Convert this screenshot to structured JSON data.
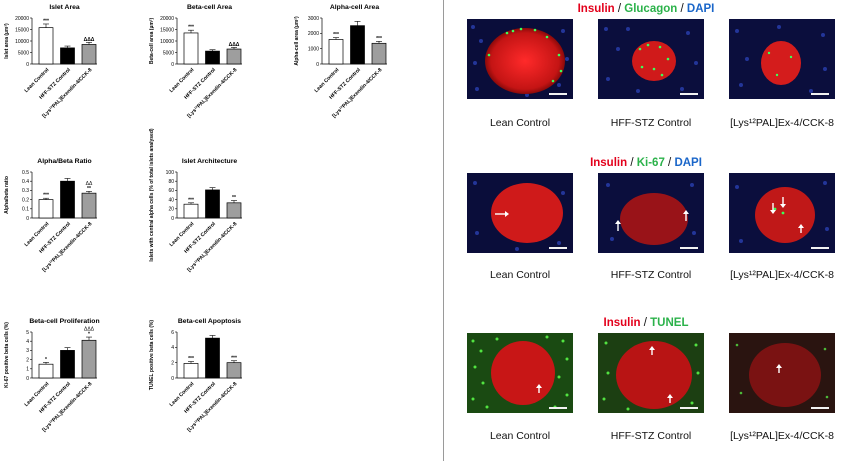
{
  "chart_data": [
    {
      "type": "bar",
      "title": "Islet Area",
      "ylabel": "Islet area (µm²)",
      "ylim": [
        0,
        20000
      ],
      "ticks": [
        0,
        5000,
        10000,
        15000,
        20000
      ],
      "categories": [
        "Lean Control",
        "HFF-STZ Control",
        "[Lys¹²PAL]Exendin-4/CCK-8"
      ],
      "values": [
        15800,
        7000,
        8500
      ],
      "errors": [
        1600,
        800,
        900
      ],
      "annotations": [
        "***",
        "",
        "ΔΔΔ"
      ]
    },
    {
      "type": "bar",
      "title": "Beta-cell Area",
      "ylabel": "Beta-cell area (µm²)",
      "ylim": [
        0,
        20000
      ],
      "ticks": [
        0,
        5000,
        10000,
        15000,
        20000
      ],
      "categories": [
        "Lean Control",
        "HFF-STZ Control",
        "[Lys¹²PAL]Exendin-4/CCK-8"
      ],
      "values": [
        13500,
        5600,
        6500
      ],
      "errors": [
        1200,
        600,
        700
      ],
      "annotations": [
        "***",
        "",
        "ΔΔΔ"
      ]
    },
    {
      "type": "bar",
      "title": "Alpha-cell Area",
      "ylabel": "Alpha-cell area (µm²)",
      "ylim": [
        0,
        3000
      ],
      "ticks": [
        0,
        1000,
        2000,
        3000
      ],
      "categories": [
        "Lean Control",
        "HFF-STZ Control",
        "[Lys¹²PAL]Exendin-4/CCK-8"
      ],
      "values": [
        1600,
        2500,
        1350
      ],
      "errors": [
        120,
        280,
        130
      ],
      "annotations": [
        "***",
        "",
        "***"
      ]
    },
    {
      "type": "bar",
      "title": "Alpha/Beta Ratio",
      "ylabel": "Alpha/beta ratio",
      "ylim": [
        0,
        0.5
      ],
      "ticks": [
        0.0,
        0.1,
        0.2,
        0.3,
        0.4,
        0.5
      ],
      "categories": [
        "Lean Control",
        "HFF-STZ Control",
        "[Lys¹²PAL]Exendin-4/CCK-8"
      ],
      "values": [
        0.2,
        0.4,
        0.27
      ],
      "errors": [
        0.015,
        0.03,
        0.02
      ],
      "annotations": [
        "***",
        "",
        "**"
      ],
      "annotations2": [
        "",
        "",
        "ΔΔ"
      ]
    },
    {
      "type": "bar",
      "title": "Islet Architecture",
      "ylabel": "Islets with central alpha cells (% of total islets analysed)",
      "ylim": [
        0,
        100
      ],
      "ticks": [
        0,
        20,
        40,
        60,
        80,
        100
      ],
      "categories": [
        "Lean Control",
        "HFF-STZ Control",
        "[Lys¹²PAL]Exendin-4/CCK-8"
      ],
      "values": [
        30,
        61,
        33
      ],
      "errors": [
        3,
        5,
        5
      ],
      "annotations": [
        "***",
        "",
        "**"
      ]
    },
    {
      "type": "bar",
      "title": "Beta-cell Proliferation",
      "ylabel": "Ki-67 positive beta cells (%)",
      "ylim": [
        0,
        5
      ],
      "ticks": [
        0,
        1,
        2,
        3,
        4,
        5
      ],
      "categories": [
        "Lean Control",
        "HFF-STZ Control",
        "[Lys¹²PAL]Exendin-4/CCK-8"
      ],
      "values": [
        1.5,
        3.0,
        4.1
      ],
      "errors": [
        0.2,
        0.3,
        0.35
      ],
      "annotations": [
        "*",
        "",
        "*"
      ],
      "annotations2": [
        "",
        "",
        "ΔΔΔ"
      ]
    },
    {
      "type": "bar",
      "title": "Beta-cell Apoptosis",
      "ylabel": "TUNEL positive beta cells (%)",
      "ylim": [
        0,
        6
      ],
      "ticks": [
        0,
        2,
        4,
        6
      ],
      "categories": [
        "Lean Control",
        "HFF-STZ Control",
        "[Lys¹²PAL]Exendin-4/CCK-8"
      ],
      "values": [
        1.9,
        5.2,
        2.0
      ],
      "errors": [
        0.25,
        0.35,
        0.25
      ],
      "annotations": [
        "***",
        "",
        "***"
      ]
    }
  ],
  "fills": [
    "#ffffff",
    "#000000",
    "#9e9e9e"
  ],
  "micrographs": {
    "rows": [
      {
        "title": [
          {
            "text": "Insulin",
            "color": "red"
          },
          {
            "text": " / ",
            "color": "sep"
          },
          {
            "text": "Glucagon",
            "color": "green"
          },
          {
            "text": " / ",
            "color": "sep"
          },
          {
            "text": "DAPI",
            "color": "blue"
          }
        ]
      },
      {
        "title": [
          {
            "text": "Insulin",
            "color": "red"
          },
          {
            "text": " / ",
            "color": "sep"
          },
          {
            "text": "Ki-67",
            "color": "green"
          },
          {
            "text": " / ",
            "color": "sep"
          },
          {
            "text": "DAPI",
            "color": "blue"
          }
        ]
      },
      {
        "title": [
          {
            "text": "Insulin",
            "color": "red"
          },
          {
            "text": " / ",
            "color": "sep"
          },
          {
            "text": "TUNEL",
            "color": "green"
          }
        ]
      }
    ],
    "captions": [
      "Lean Control",
      "HFF-STZ Control",
      "[Lys¹²PAL]Ex-4/CCK-8"
    ]
  }
}
